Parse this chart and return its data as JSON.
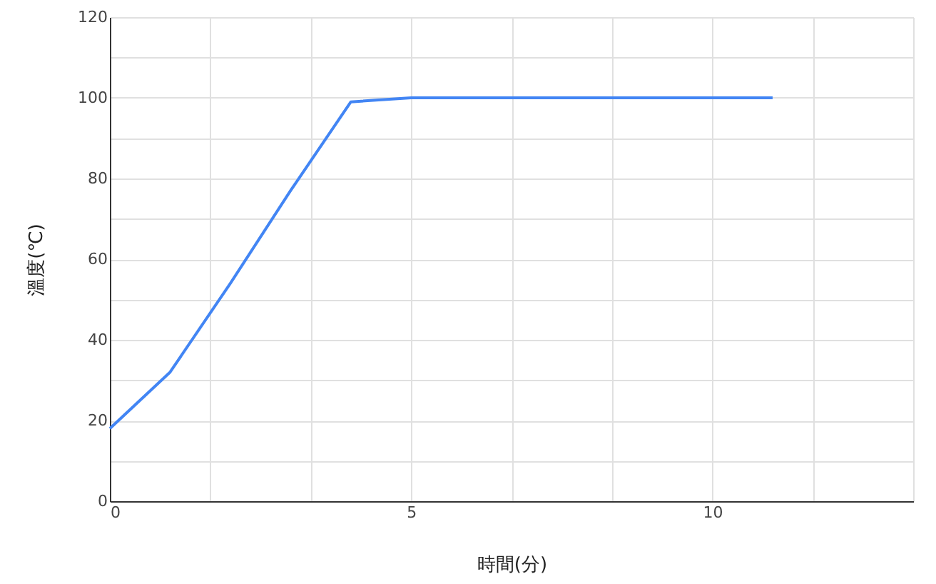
{
  "chart_data": {
    "type": "line",
    "xlabel": "時間(分)",
    "ylabel": "溫度(℃)",
    "x": [
      0,
      1,
      2,
      3,
      4,
      5,
      6,
      7,
      8,
      9,
      10,
      11
    ],
    "series": [
      {
        "color": "#4285f4",
        "values": [
          18,
          32,
          54,
          77,
          99,
          100,
          100,
          100,
          100,
          100,
          100,
          100
        ]
      }
    ],
    "xlim": [
      0,
      13.333
    ],
    "xticks": [
      0,
      {
        "value": 1.667,
        "label": null
      },
      {
        "value": 3.333,
        "label": null
      },
      5,
      {
        "value": 6.667,
        "label": null
      },
      {
        "value": 8.333,
        "label": null
      },
      10,
      {
        "value": 11.667,
        "label": null
      },
      {
        "value": 13.333,
        "label": null
      }
    ],
    "ylim": [
      0,
      120
    ],
    "yticks": [
      0,
      {
        "value": 10,
        "label": null
      },
      20,
      {
        "value": 30,
        "label": null
      },
      40,
      {
        "value": 50,
        "label": null
      },
      60,
      {
        "value": 70,
        "label": null
      },
      80,
      {
        "value": 90,
        "label": null
      },
      100,
      {
        "value": 110,
        "label": null
      },
      120
    ],
    "grid": true,
    "marker": "none",
    "line_style": "solid"
  }
}
